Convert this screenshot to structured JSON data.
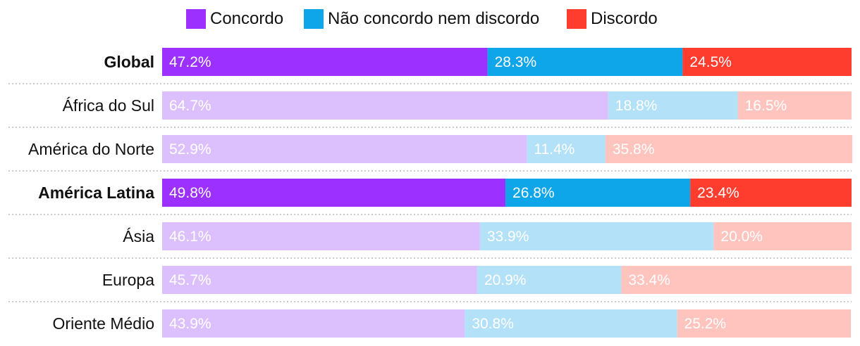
{
  "chart_data": {
    "type": "bar",
    "orientation": "horizontal",
    "stacked": true,
    "legend_position": "top",
    "title": "",
    "xlabel": "",
    "ylabel": "",
    "xlim": [
      0,
      100
    ],
    "grid": false,
    "categories": [
      "Global",
      "África do Sul",
      "América do Norte",
      "América Latina",
      "Ásia",
      "Europa",
      "Oriente Médio"
    ],
    "highlighted": [
      "Global",
      "América Latina"
    ],
    "series": [
      {
        "name": "Concordo",
        "color": "#9b30ff",
        "faded_color": "#dcbffd",
        "values": [
          47.2,
          64.7,
          52.9,
          49.8,
          46.1,
          45.7,
          43.9
        ],
        "labels": [
          "47.2%",
          "64.7%",
          "52.9%",
          "49.8%",
          "46.1%",
          "45.7%",
          "43.9%"
        ]
      },
      {
        "name": "Não concordo nem discordo",
        "color": "#0ea5e9",
        "faded_color": "#b3e1f8",
        "values": [
          28.3,
          18.8,
          11.4,
          26.8,
          33.9,
          20.9,
          30.8
        ],
        "labels": [
          "28.3%",
          "18.8%",
          "11.4%",
          "26.8%",
          "33.9%",
          "20.9%",
          "30.8%"
        ]
      },
      {
        "name": "Discordo",
        "color": "#ff3d2e",
        "faded_color": "#ffc4be",
        "values": [
          24.5,
          16.5,
          35.8,
          23.4,
          20.0,
          33.4,
          25.2
        ],
        "labels": [
          "24.5%",
          "16.5%",
          "35.8%",
          "23.4%",
          "20.0%",
          "33.4%",
          "25.2%"
        ]
      }
    ]
  }
}
